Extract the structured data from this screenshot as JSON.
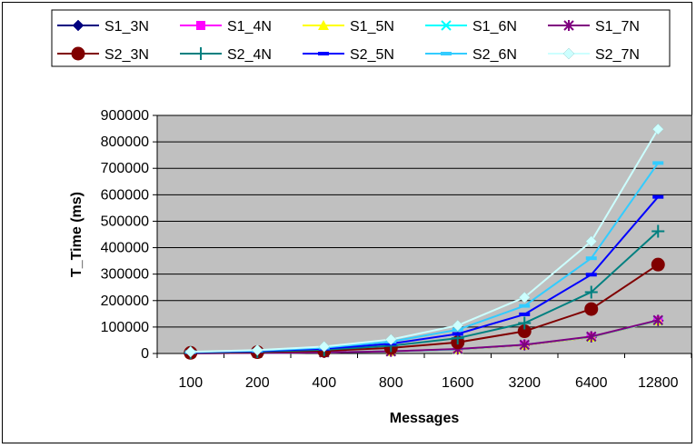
{
  "chart_data": {
    "type": "line",
    "xlabel": "Messages",
    "ylabel": "T_Time (ms)",
    "categories": [
      "100",
      "200",
      "400",
      "800",
      "1600",
      "3200",
      "6400",
      "12800"
    ],
    "ylim": [
      0,
      900000
    ],
    "yticks": [
      "0",
      "100000",
      "200000",
      "300000",
      "400000",
      "500000",
      "600000",
      "700000",
      "800000",
      "900000"
    ],
    "grid": true,
    "legend_position": "top",
    "plot_background": "#c0c0c0",
    "series": [
      {
        "name": "S1_3N",
        "color": "#000080",
        "marker": "diamond",
        "values": [
          1000,
          2000,
          4000,
          8000,
          16000,
          32000,
          62000,
          124000
        ]
      },
      {
        "name": "S1_4N",
        "color": "#ff00ff",
        "marker": "square",
        "values": [
          1000,
          2000,
          4000,
          8000,
          16000,
          32000,
          62000,
          124000
        ]
      },
      {
        "name": "S1_5N",
        "color": "#ffff00",
        "marker": "triangle",
        "values": [
          1000,
          2000,
          4000,
          8000,
          16000,
          32000,
          62000,
          124000
        ]
      },
      {
        "name": "S1_6N",
        "color": "#00ffff",
        "marker": "x",
        "values": [
          1000,
          2000,
          4000,
          8000,
          16000,
          33000,
          63000,
          125000
        ]
      },
      {
        "name": "S1_7N",
        "color": "#800080",
        "marker": "star",
        "values": [
          1000,
          2000,
          4000,
          8000,
          17000,
          33000,
          64000,
          126000
        ]
      },
      {
        "name": "S2_3N",
        "color": "#800000",
        "marker": "circle",
        "values": [
          2500,
          5000,
          10000,
          21000,
          42000,
          84000,
          168000,
          336000
        ]
      },
      {
        "name": "S2_4N",
        "color": "#008080",
        "marker": "plus",
        "values": [
          3500,
          7000,
          14000,
          29000,
          58000,
          115000,
          232000,
          462000
        ]
      },
      {
        "name": "S2_5N",
        "color": "#0000ff",
        "marker": "dash",
        "values": [
          4500,
          9000,
          18000,
          37000,
          74000,
          148000,
          298000,
          592000
        ]
      },
      {
        "name": "S2_6N",
        "color": "#33ccff",
        "marker": "dash",
        "values": [
          5500,
          11000,
          22000,
          45000,
          90000,
          180000,
          360000,
          720000
        ]
      },
      {
        "name": "S2_7N",
        "color": "#ccffff",
        "marker": "diamond",
        "values": [
          6500,
          13000,
          26000,
          53000,
          106000,
          212000,
          424000,
          848000
        ]
      }
    ]
  }
}
